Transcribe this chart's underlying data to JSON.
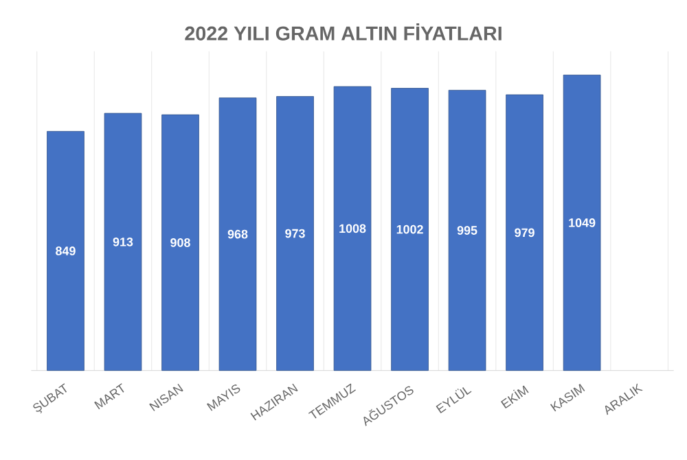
{
  "chart_data": {
    "type": "bar",
    "title": "2022 YILI GRAM ALTIN FİYATLARI",
    "categories": [
      "ŞUBAT",
      "MART",
      "NISAN",
      "MAYIS",
      "HAZIRAN",
      "TEMMUZ",
      "AĞUSTOS",
      "EYLÜL",
      "EKİM",
      "KASIM",
      "ARALIK"
    ],
    "values": [
      849,
      913,
      908,
      968,
      973,
      1008,
      1002,
      995,
      979,
      1049,
      null
    ],
    "color": "#4472c4",
    "data_labels": true,
    "grid": "x"
  }
}
